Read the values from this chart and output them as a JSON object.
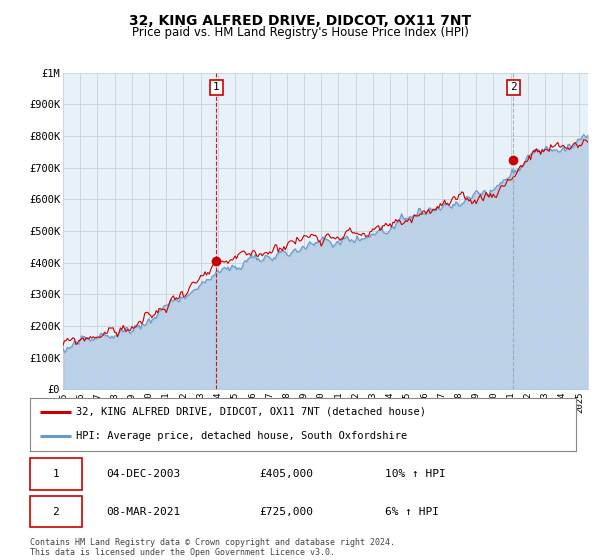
{
  "title": "32, KING ALFRED DRIVE, DIDCOT, OX11 7NT",
  "subtitle": "Price paid vs. HM Land Registry's House Price Index (HPI)",
  "ylabel_ticks": [
    "£0",
    "£100K",
    "£200K",
    "£300K",
    "£400K",
    "£500K",
    "£600K",
    "£700K",
    "£800K",
    "£900K",
    "£1M"
  ],
  "ytick_values": [
    0,
    100000,
    200000,
    300000,
    400000,
    500000,
    600000,
    700000,
    800000,
    900000,
    1000000
  ],
  "ylim": [
    0,
    1000000
  ],
  "xlim_start": 1995.0,
  "xlim_end": 2025.5,
  "red_line_color": "#cc0000",
  "blue_line_color": "#6699cc",
  "blue_fill_color": "#ddeeff",
  "plot_bg_color": "#e8f0f8",
  "marker1_date": 2003.917,
  "marker1_price": 405000,
  "marker1_label": "1",
  "marker2_date": 2021.167,
  "marker2_price": 725000,
  "marker2_label": "2",
  "vline1_color": "#cc0000",
  "vline2_color": "#999999",
  "legend_label_red": "32, KING ALFRED DRIVE, DIDCOT, OX11 7NT (detached house)",
  "legend_label_blue": "HPI: Average price, detached house, South Oxfordshire",
  "table_row1": [
    "1",
    "04-DEC-2003",
    "£405,000",
    "10% ↑ HPI"
  ],
  "table_row2": [
    "2",
    "08-MAR-2021",
    "£725,000",
    "6% ↑ HPI"
  ],
  "footnote": "Contains HM Land Registry data © Crown copyright and database right 2024.\nThis data is licensed under the Open Government Licence v3.0.",
  "background_color": "#ffffff",
  "grid_color": "#c8d0dc",
  "xtick_years": [
    1995,
    1996,
    1997,
    1998,
    1999,
    2000,
    2001,
    2002,
    2003,
    2004,
    2005,
    2006,
    2007,
    2008,
    2009,
    2010,
    2011,
    2012,
    2013,
    2014,
    2015,
    2016,
    2017,
    2018,
    2019,
    2020,
    2021,
    2022,
    2023,
    2024,
    2025
  ]
}
